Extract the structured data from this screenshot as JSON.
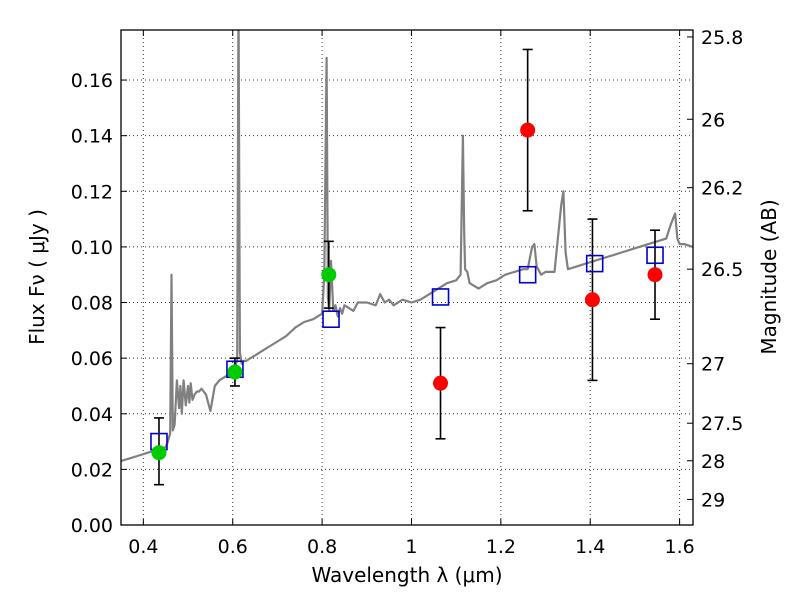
{
  "chart_data": {
    "type": "scatter",
    "xlabel": "Wavelength  λ (μm)",
    "ylabel": "Flux  Fν  ( μJy )",
    "ylabel_right": "Magnitude (AB)",
    "xlim": [
      0.35,
      1.63
    ],
    "ylim": [
      0.0,
      0.178
    ],
    "grid": true,
    "x_ticks": [
      0.4,
      0.6,
      0.8,
      1.0,
      1.2,
      1.4,
      1.6
    ],
    "x_tick_labels": [
      "0.4",
      "0.6",
      "0.8",
      "1",
      "1.2",
      "1.4",
      "1.6"
    ],
    "y_ticks": [
      0.0,
      0.02,
      0.04,
      0.06,
      0.08,
      0.1,
      0.12,
      0.14,
      0.16
    ],
    "y_tick_labels": [
      "0.00",
      "0.02",
      "0.04",
      "0.06",
      "0.08",
      "0.10",
      "0.12",
      "0.14",
      "0.16"
    ],
    "right_ticks": [
      {
        "label": "25.8",
        "flux": 0.1755
      },
      {
        "label": "26",
        "flux": 0.1459
      },
      {
        "label": "26.2",
        "flux": 0.1213
      },
      {
        "label": "26.5",
        "flux": 0.092
      },
      {
        "label": "27",
        "flux": 0.058
      },
      {
        "label": "27.5",
        "flux": 0.0366
      },
      {
        "label": "28",
        "flux": 0.0231
      },
      {
        "label": "29",
        "flux": 0.0092
      }
    ],
    "series": [
      {
        "style": "line",
        "color": "#808080",
        "x": [
          0.35,
          0.37,
          0.39,
          0.41,
          0.43,
          0.45,
          0.455,
          0.46,
          0.463,
          0.466,
          0.47,
          0.475,
          0.48,
          0.483,
          0.486,
          0.49,
          0.495,
          0.5,
          0.503,
          0.506,
          0.51,
          0.515,
          0.52,
          0.525,
          0.53,
          0.54,
          0.55,
          0.56,
          0.57,
          0.58,
          0.59,
          0.6,
          0.605,
          0.61,
          0.613,
          0.616,
          0.62,
          0.625,
          0.63,
          0.64,
          0.65,
          0.66,
          0.67,
          0.68,
          0.7,
          0.72,
          0.74,
          0.76,
          0.78,
          0.8,
          0.805,
          0.81,
          0.813,
          0.816,
          0.82,
          0.825,
          0.83,
          0.835,
          0.84,
          0.845,
          0.85,
          0.86,
          0.87,
          0.88,
          0.9,
          0.92,
          0.93,
          0.94,
          0.95,
          0.96,
          0.98,
          1.0,
          1.02,
          1.04,
          1.06,
          1.08,
          1.1,
          1.11,
          1.115,
          1.118,
          1.12,
          1.125,
          1.13,
          1.15,
          1.17,
          1.19,
          1.21,
          1.23,
          1.25,
          1.26,
          1.27,
          1.275,
          1.28,
          1.29,
          1.3,
          1.32,
          1.335,
          1.34,
          1.345,
          1.35,
          1.37,
          1.39,
          1.41,
          1.43,
          1.45,
          1.47,
          1.49,
          1.51,
          1.53,
          1.55,
          1.57,
          1.58,
          1.59,
          1.595,
          1.6,
          1.61,
          1.63
        ],
        "y": [
          0.023,
          0.024,
          0.025,
          0.026,
          0.027,
          0.028,
          0.03,
          0.033,
          0.09,
          0.034,
          0.036,
          0.052,
          0.042,
          0.05,
          0.04,
          0.052,
          0.043,
          0.05,
          0.044,
          0.051,
          0.045,
          0.047,
          0.048,
          0.048,
          0.049,
          0.047,
          0.041,
          0.05,
          0.052,
          0.053,
          0.054,
          0.055,
          0.057,
          0.059,
          0.19,
          0.062,
          0.058,
          0.059,
          0.059,
          0.06,
          0.061,
          0.062,
          0.063,
          0.064,
          0.066,
          0.068,
          0.071,
          0.073,
          0.074,
          0.076,
          0.09,
          0.168,
          0.082,
          0.077,
          0.095,
          0.077,
          0.079,
          0.075,
          0.078,
          0.076,
          0.079,
          0.078,
          0.077,
          0.08,
          0.08,
          0.079,
          0.083,
          0.08,
          0.081,
          0.079,
          0.081,
          0.08,
          0.081,
          0.083,
          0.085,
          0.087,
          0.088,
          0.09,
          0.14,
          0.105,
          0.092,
          0.091,
          0.087,
          0.085,
          0.087,
          0.088,
          0.09,
          0.091,
          0.092,
          0.092,
          0.1,
          0.101,
          0.093,
          0.09,
          0.091,
          0.091,
          0.115,
          0.12,
          0.098,
          0.092,
          0.093,
          0.094,
          0.095,
          0.096,
          0.097,
          0.098,
          0.099,
          0.1,
          0.101,
          0.102,
          0.103,
          0.108,
          0.112,
          0.103,
          0.101,
          0.101,
          0.1
        ]
      },
      {
        "style": "open-square",
        "color": "#0000cc",
        "x": [
          0.435,
          0.605,
          0.82,
          1.065,
          1.26,
          1.41,
          1.545
        ],
        "y": [
          0.03,
          0.056,
          0.074,
          0.082,
          0.09,
          0.094,
          0.097
        ]
      },
      {
        "style": "filled-circle",
        "color": "#00cc00",
        "x": [
          0.435,
          0.605,
          0.815
        ],
        "y": [
          0.026,
          0.055,
          0.09
        ],
        "err_low": [
          0.0115,
          0.005,
          0.012
        ],
        "err_high": [
          0.0125,
          0.005,
          0.012
        ]
      },
      {
        "style": "filled-circle",
        "color": "#ff0000",
        "x": [
          1.065,
          1.26,
          1.405,
          1.545
        ],
        "y": [
          0.051,
          0.142,
          0.081,
          0.09
        ],
        "err_low": [
          0.02,
          0.029,
          0.029,
          0.016
        ],
        "err_high": [
          0.02,
          0.029,
          0.029,
          0.016
        ]
      }
    ]
  }
}
